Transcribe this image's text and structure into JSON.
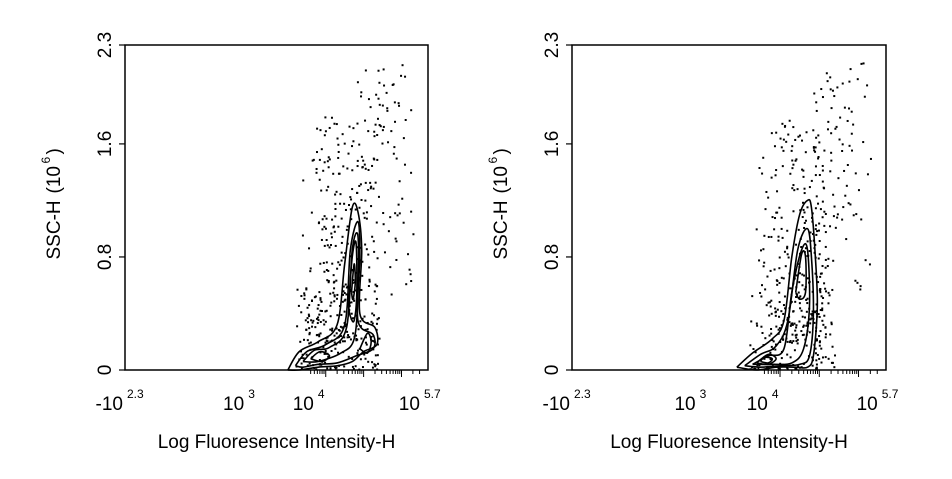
{
  "chart_data": [
    {
      "type": "scatter",
      "subtype": "flow-cytometry contour plot with outlier dots",
      "xlabel": "Log Fluoresence Intensity-H",
      "ylabel_main": "SSC-H",
      "ylabel_unit_base": "(10",
      "ylabel_unit_exp": "6",
      "ylabel_unit_close": ")",
      "x_scale": "log (biexponential)",
      "xlim_exponent": [
        -2.3,
        5.7
      ],
      "ylim": [
        0,
        2.3
      ],
      "yticks": [
        {
          "value": 0,
          "label": "0"
        },
        {
          "value": 0.8,
          "label": "0.8"
        },
        {
          "value": 1.6,
          "label": "1.6"
        },
        {
          "value": 2.3,
          "label": "2.3"
        }
      ],
      "xticks": [
        {
          "base": "-10",
          "exp": "2.3"
        },
        {
          "base": "10",
          "exp": "3"
        },
        {
          "base": "10",
          "exp": "4"
        },
        {
          "base": "10",
          "exp": "5.7"
        }
      ],
      "contours": [
        {
          "level": 1,
          "x": [
            2.0,
            2.3,
            2.8,
            3.3,
            3.5,
            3.7,
            3.85,
            3.95,
            3.9,
            4.3,
            4.35,
            4.0,
            3.7,
            3.3,
            2.8,
            2.3,
            2.0
          ],
          "y": [
            0.0,
            0.13,
            0.2,
            0.32,
            0.75,
            1.15,
            1.12,
            0.85,
            0.4,
            0.3,
            0.18,
            0.13,
            0.06,
            0.03,
            0.02,
            0.0,
            0.0
          ]
        },
        {
          "level": 2,
          "x": [
            2.2,
            2.5,
            3.0,
            3.5,
            3.65,
            3.85,
            3.9,
            3.85,
            4.25,
            4.25,
            3.8,
            3.3,
            2.8,
            2.4,
            2.2
          ],
          "y": [
            0.03,
            0.13,
            0.18,
            0.32,
            0.85,
            1.05,
            0.8,
            0.35,
            0.25,
            0.15,
            0.1,
            0.05,
            0.04,
            0.02,
            0.03
          ]
        },
        {
          "level": 3,
          "x": [
            2.4,
            2.7,
            3.1,
            3.55,
            3.7,
            3.85,
            3.85,
            3.75,
            3.4,
            2.8,
            2.4
          ],
          "y": [
            0.06,
            0.14,
            0.16,
            0.3,
            0.85,
            0.95,
            0.55,
            0.22,
            0.12,
            0.06,
            0.06
          ]
        },
        {
          "level": 4,
          "x": [
            3.6,
            3.7,
            3.8,
            3.82,
            3.75,
            3.65,
            3.6
          ],
          "y": [
            0.45,
            0.8,
            0.9,
            0.55,
            0.35,
            0.38,
            0.45
          ]
        },
        {
          "level": 5,
          "x": [
            3.68,
            3.75,
            3.78,
            3.72,
            3.68
          ],
          "y": [
            0.55,
            0.75,
            0.62,
            0.5,
            0.55
          ]
        },
        {
          "level": 6,
          "x": [
            3.9,
            4.1,
            4.2,
            4.1,
            3.9
          ],
          "y": [
            0.15,
            0.12,
            0.2,
            0.26,
            0.15
          ]
        },
        {
          "level": 7,
          "x": [
            2.6,
            2.9,
            3.1,
            2.85,
            2.6
          ],
          "y": [
            0.08,
            0.06,
            0.1,
            0.13,
            0.08
          ]
        }
      ],
      "grid": false,
      "legend": "none"
    },
    {
      "type": "scatter",
      "subtype": "flow-cytometry contour plot with outlier dots",
      "xlabel": "Log Fluoresence Intensity-H",
      "ylabel_main": "SSC-H",
      "ylabel_unit_base": "(10",
      "ylabel_unit_exp": "6",
      "ylabel_unit_close": ")",
      "x_scale": "log (biexponential)",
      "xlim_exponent": [
        -2.3,
        5.7
      ],
      "ylim": [
        0,
        2.3
      ],
      "yticks": [
        {
          "value": 0,
          "label": "0"
        },
        {
          "value": 0.8,
          "label": "0.8"
        },
        {
          "value": 1.6,
          "label": "1.6"
        },
        {
          "value": 2.3,
          "label": "2.3"
        }
      ],
      "xticks": [
        {
          "base": "-10",
          "exp": "2.3"
        },
        {
          "base": "10",
          "exp": "3"
        },
        {
          "base": "10",
          "exp": "4"
        },
        {
          "base": "10",
          "exp": "5.7"
        }
      ],
      "contours": [
        {
          "level": 1,
          "x": [
            1.9,
            2.3,
            2.8,
            3.1,
            3.3,
            3.5,
            3.7,
            3.8,
            3.9,
            3.95,
            3.85,
            3.7,
            3.4,
            2.9,
            2.4,
            1.9
          ],
          "y": [
            0.02,
            0.12,
            0.22,
            0.35,
            0.8,
            1.1,
            1.2,
            1.15,
            0.8,
            0.45,
            0.1,
            0.02,
            0.02,
            0.02,
            0.0,
            0.02
          ]
        },
        {
          "level": 2,
          "x": [
            2.1,
            2.5,
            2.9,
            3.2,
            3.45,
            3.7,
            3.8,
            3.85,
            3.75,
            3.5,
            3.0,
            2.5,
            2.1
          ],
          "y": [
            0.03,
            0.11,
            0.17,
            0.35,
            0.85,
            1.0,
            0.8,
            0.4,
            0.1,
            0.04,
            0.03,
            0.02,
            0.03
          ]
        },
        {
          "level": 3,
          "x": [
            2.3,
            2.7,
            3.1,
            3.3,
            3.55,
            3.7,
            3.75,
            3.6,
            3.3,
            2.8,
            2.3
          ],
          "y": [
            0.04,
            0.1,
            0.15,
            0.55,
            0.85,
            0.85,
            0.45,
            0.15,
            0.05,
            0.04,
            0.04
          ]
        },
        {
          "level": 4,
          "x": [
            3.4,
            3.55,
            3.65,
            3.65,
            3.5,
            3.4
          ],
          "y": [
            0.55,
            0.82,
            0.8,
            0.55,
            0.5,
            0.55
          ]
        },
        {
          "level": 5,
          "x": [
            2.4,
            2.7,
            2.9,
            2.7,
            2.4
          ],
          "y": [
            0.05,
            0.04,
            0.08,
            0.11,
            0.05
          ]
        },
        {
          "level": 6,
          "x": [
            2.5,
            2.7,
            2.8,
            2.6,
            2.5
          ],
          "y": [
            0.06,
            0.05,
            0.08,
            0.09,
            0.06
          ]
        }
      ],
      "grid": false,
      "legend": "none"
    }
  ]
}
